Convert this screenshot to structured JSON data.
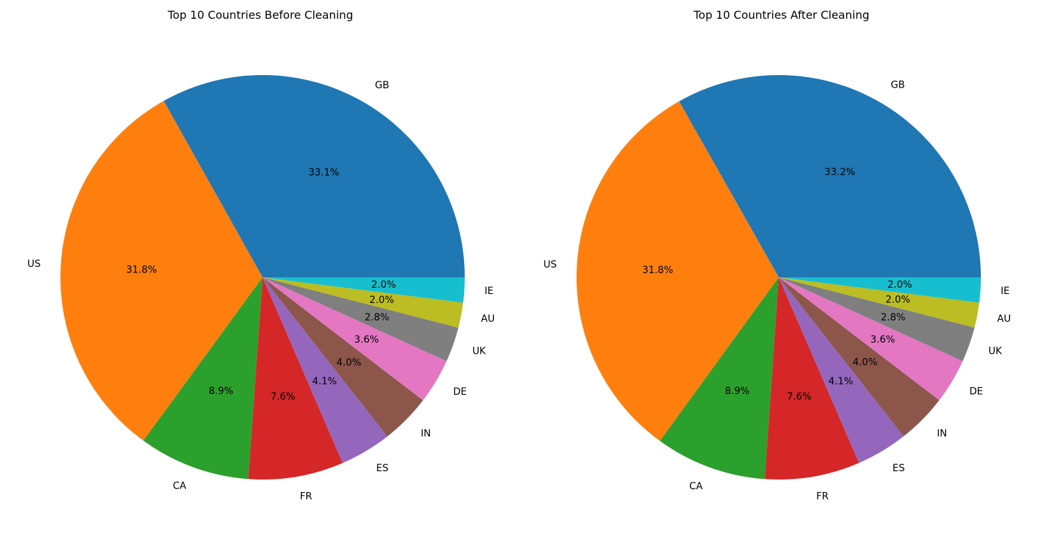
{
  "chart_data": [
    {
      "type": "pie",
      "title": "Top 10 Countries Before Cleaning",
      "categories": [
        "GB",
        "US",
        "CA",
        "FR",
        "ES",
        "IN",
        "DE",
        "UK",
        "AU",
        "IE"
      ],
      "values": [
        33.1,
        31.8,
        8.9,
        7.6,
        4.1,
        4.0,
        3.6,
        2.8,
        2.0,
        2.0
      ],
      "value_labels": [
        "33.1%",
        "31.8%",
        "8.9%",
        "7.6%",
        "4.1%",
        "4.0%",
        "3.6%",
        "2.8%",
        "2.0%",
        "2.0%"
      ],
      "colors": [
        "#1f77b4",
        "#ff7f0e",
        "#2ca02c",
        "#d62728",
        "#9467bd",
        "#8c564b",
        "#e377c2",
        "#7f7f7f",
        "#bcbd22",
        "#17becf"
      ],
      "start_angle": 0,
      "direction": "counterclockwise",
      "legend": "none"
    },
    {
      "type": "pie",
      "title": "Top 10 Countries After Cleaning",
      "categories": [
        "GB",
        "US",
        "CA",
        "FR",
        "ES",
        "IN",
        "DE",
        "UK",
        "AU",
        "IE"
      ],
      "values": [
        33.2,
        31.8,
        8.9,
        7.6,
        4.1,
        4.0,
        3.6,
        2.8,
        2.0,
        2.0
      ],
      "value_labels": [
        "33.2%",
        "31.8%",
        "8.9%",
        "7.6%",
        "4.1%",
        "4.0%",
        "3.6%",
        "2.8%",
        "2.0%",
        "2.0%"
      ],
      "colors": [
        "#1f77b4",
        "#ff7f0e",
        "#2ca02c",
        "#d62728",
        "#9467bd",
        "#8c564b",
        "#e377c2",
        "#7f7f7f",
        "#bcbd22",
        "#17becf"
      ],
      "start_angle": 0,
      "direction": "counterclockwise",
      "legend": "none"
    }
  ]
}
